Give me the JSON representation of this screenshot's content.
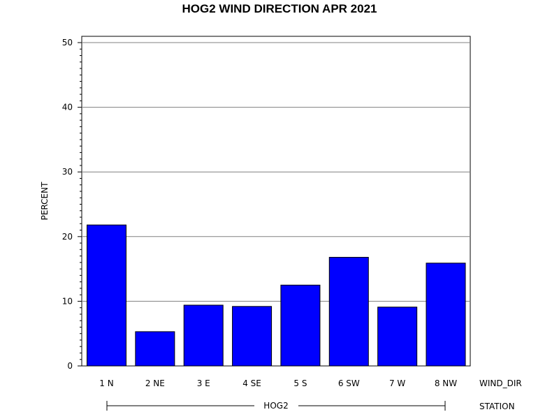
{
  "chart_data": {
    "type": "bar",
    "title": "HOG2 WIND DIRECTION APR 2021",
    "ylabel": "PERCENT",
    "xlabel": "WIND_DIR",
    "group_label": "STATION",
    "group_value": "HOG2",
    "categories": [
      "1 N",
      "2 NE",
      "3 E",
      "4 SE",
      "5 S",
      "6 SW",
      "7 W",
      "8 NW"
    ],
    "values": [
      21.8,
      5.3,
      9.4,
      9.2,
      12.5,
      16.8,
      9.1,
      15.9
    ],
    "ylim": [
      0,
      50
    ],
    "yticks": [
      "0",
      "10",
      "20",
      "30",
      "40",
      "50"
    ],
    "grid": true,
    "bar_color": "#0000ff"
  }
}
